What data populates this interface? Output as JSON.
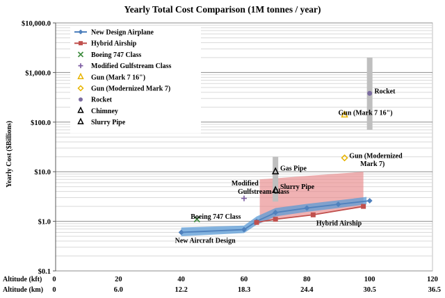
{
  "chart_data": {
    "type": "scatter",
    "title": "Yearly Total Cost Comparison (1M tonnes / year)",
    "ylabel": "Yearly Cost ($Billions)",
    "y_scale": "log",
    "ylim": [
      0.1,
      10000
    ],
    "y_ticks": [
      0.1,
      1,
      10,
      100,
      1000,
      10000
    ],
    "y_tick_labels": [
      "$0.1",
      "$1.0",
      "$10.0",
      "$100.0",
      "$1,000.0",
      "$10,000.0"
    ],
    "xlim": [
      0,
      120
    ],
    "x_ticks": [
      0,
      20,
      40,
      60,
      80,
      100,
      120
    ],
    "x_axes": [
      {
        "label": "Altitude (kft)",
        "tick_labels": [
          "0",
          "20",
          "40",
          "60",
          "80",
          "100",
          "120"
        ]
      },
      {
        "label": "Altitude (km)",
        "tick_labels": [
          "0",
          "6.0",
          "12.2",
          "18.3",
          "24.4",
          "30.5",
          "36.5"
        ]
      }
    ],
    "legend_position": "top-left",
    "series": [
      {
        "name": "New Design Airplane",
        "marker": "diamond",
        "color": "#4f81bd",
        "line": true,
        "x": [
          40,
          60,
          64,
          70,
          80,
          90,
          100
        ],
        "y": [
          0.6,
          0.68,
          1.0,
          1.5,
          1.85,
          2.2,
          2.6
        ],
        "band": {
          "x": [
            40,
            60,
            64,
            70,
            80,
            90,
            99
          ],
          "lower": [
            0.5,
            0.58,
            0.85,
            1.25,
            1.55,
            1.85,
            2.2
          ],
          "upper": [
            0.75,
            0.82,
            1.25,
            1.85,
            2.25,
            2.65,
            3.1
          ]
        }
      },
      {
        "name": "Hybrid Airship",
        "marker": "square",
        "color": "#c0504d",
        "line": true,
        "x": [
          64,
          70,
          82,
          98
        ],
        "y": [
          0.95,
          1.1,
          1.35,
          2.0
        ]
      },
      {
        "name": "Boeing 747 Class",
        "marker": "x",
        "color": "#3f8c3f",
        "x": [
          45
        ],
        "y": [
          1.1
        ]
      },
      {
        "name": "Modified Gulfstream Class",
        "marker": "plus",
        "color": "#7e5ea3",
        "x": [
          60
        ],
        "y": [
          2.9
        ]
      },
      {
        "name": "Gun (Mark 7 16\")",
        "marker": "triangle-open",
        "color": "#e8b400",
        "x": [
          92
        ],
        "y": [
          140
        ]
      },
      {
        "name": "Gun (Modernized Mark 7)",
        "marker": "diamond-open",
        "color": "#e8b400",
        "x": [
          92
        ],
        "y": [
          19
        ]
      },
      {
        "name": "Rocket",
        "marker": "circle",
        "color": "#7b6ca0",
        "x": [
          100
        ],
        "y": [
          380
        ],
        "range": [
          70,
          2000
        ]
      },
      {
        "name": "Chimney",
        "marker": "triangle-open",
        "color": "#000000",
        "x": [
          70
        ],
        "y": [
          10
        ],
        "range": [
          2.5,
          20
        ]
      },
      {
        "name": "Slurry Pipe",
        "marker": "triangle-open",
        "color": "#000000",
        "x": [
          70
        ],
        "y": [
          4.2
        ]
      }
    ],
    "regions": [
      {
        "name": "Slurry Pipe",
        "x_range": [
          65,
          98
        ],
        "y_low": [
          1.0,
          1.9
        ],
        "y_high": [
          7.0,
          10.0
        ],
        "color": "#e8898b"
      }
    ],
    "annotations": [
      {
        "text": "Rocket",
        "x": 101.5,
        "y": 380
      },
      {
        "text": "Gun (Mark 7 16\")",
        "x": 90,
        "y": 140
      },
      {
        "text": "Gun (Modernized",
        "x": 93.5,
        "y": 19
      },
      {
        "text": "Mark 7)",
        "x": 97,
        "y": 13
      },
      {
        "text": "Gas Pipe",
        "x": 71.5,
        "y": 10.5
      },
      {
        "text": "Slurry Pipe",
        "x": 71.5,
        "y": 4.5
      },
      {
        "text": "Modified",
        "x": 56,
        "y": 5.3
      },
      {
        "text": "Gulfstream Class",
        "x": 58,
        "y": 3.6
      },
      {
        "text": "Boeing 747 Class",
        "x": 43,
        "y": 1.12
      },
      {
        "text": "Hybrid  Airship",
        "x": 83,
        "y": 0.83
      },
      {
        "text": "New Aircraft Design",
        "x": 38,
        "y": 0.37
      }
    ]
  }
}
